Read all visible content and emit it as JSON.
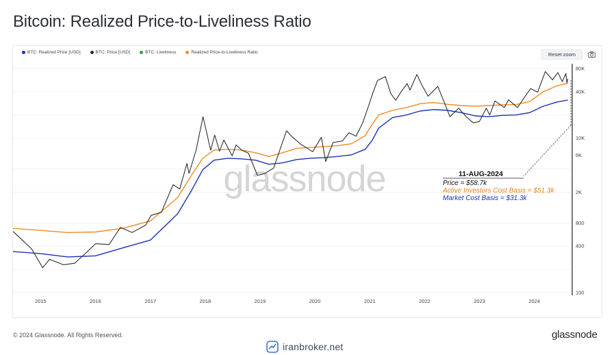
{
  "page": {
    "title": "Bitcoin: Realized Price-to-Liveliness Ratio",
    "copyright": "© 2024 Glassnode. All Rights Reserved.",
    "brand": "glassnode",
    "watermark": "glassnode",
    "broker": "iranbroker.net"
  },
  "toolbar": {
    "reset_zoom": "Reset zoom",
    "camera_icon": "camera-icon"
  },
  "legend": [
    {
      "label": "BTC: Realized Price [USD]",
      "color": "#1a32b5"
    },
    {
      "label": "BTC: Price [USD]",
      "color": "#2d2d2d"
    },
    {
      "label": "BTC: Liveliness",
      "color": "#3a9a3a"
    },
    {
      "label": "Realized Price-to-Liveliness Ratio",
      "color": "#f08a24"
    }
  ],
  "annotation": {
    "date": "11-AUG-2024",
    "price": "Price = $58.7k",
    "active": "Active Investors Cost Basis = $51.3k",
    "market": "Market Cost Basis = $31.3k"
  },
  "chart_data": {
    "type": "line",
    "title": "Bitcoin: Realized Price-to-Liveliness Ratio",
    "x_ticks": [
      "2015",
      "2016",
      "2017",
      "2018",
      "2019",
      "2020",
      "2021",
      "2022",
      "2023",
      "2024"
    ],
    "y_ticks": [
      "80K",
      "40K",
      "10K",
      "6K",
      "2K",
      "800",
      "400",
      "100"
    ],
    "y_scale": "log",
    "ylim": [
      100,
      85000
    ],
    "xlim": [
      "2014-07-01",
      "2024-08-31"
    ],
    "grid": true,
    "legend_position": "top-left",
    "series": [
      {
        "name": "BTC: Price [USD]",
        "color": "#2d2d2d",
        "points": [
          [
            "2014-07-01",
            620
          ],
          [
            "2014-09-01",
            480
          ],
          [
            "2014-11-01",
            370
          ],
          [
            "2015-01-15",
            210
          ],
          [
            "2015-03-01",
            270
          ],
          [
            "2015-06-01",
            230
          ],
          [
            "2015-08-15",
            240
          ],
          [
            "2015-11-01",
            330
          ],
          [
            "2016-01-01",
            430
          ],
          [
            "2016-04-01",
            420
          ],
          [
            "2016-06-15",
            700
          ],
          [
            "2016-09-01",
            600
          ],
          [
            "2016-12-01",
            750
          ],
          [
            "2017-01-05",
            1000
          ],
          [
            "2017-03-15",
            1100
          ],
          [
            "2017-06-01",
            2500
          ],
          [
            "2017-07-15",
            2200
          ],
          [
            "2017-09-01",
            4700
          ],
          [
            "2017-09-15",
            3500
          ],
          [
            "2017-11-01",
            7000
          ],
          [
            "2017-12-17",
            19000
          ],
          [
            "2018-02-06",
            7000
          ],
          [
            "2018-03-05",
            11000
          ],
          [
            "2018-04-06",
            6800
          ],
          [
            "2018-05-05",
            9500
          ],
          [
            "2018-06-29",
            5900
          ],
          [
            "2018-07-25",
            8200
          ],
          [
            "2018-09-01",
            7000
          ],
          [
            "2018-10-15",
            6400
          ],
          [
            "2018-11-20",
            4300
          ],
          [
            "2018-12-15",
            3300
          ],
          [
            "2019-02-01",
            3500
          ],
          [
            "2019-04-01",
            4100
          ],
          [
            "2019-06-26",
            12500
          ],
          [
            "2019-08-01",
            10500
          ],
          [
            "2019-10-01",
            8300
          ],
          [
            "2019-12-17",
            6700
          ],
          [
            "2020-02-13",
            10300
          ],
          [
            "2020-03-13",
            5000
          ],
          [
            "2020-05-01",
            8800
          ],
          [
            "2020-07-01",
            9200
          ],
          [
            "2020-08-15",
            11800
          ],
          [
            "2020-10-01",
            10600
          ],
          [
            "2020-11-15",
            16000
          ],
          [
            "2020-12-31",
            29000
          ],
          [
            "2021-01-15",
            36000
          ],
          [
            "2021-02-21",
            56000
          ],
          [
            "2021-04-14",
            63000
          ],
          [
            "2021-05-20",
            38000
          ],
          [
            "2021-06-22",
            31000
          ],
          [
            "2021-08-01",
            41000
          ],
          [
            "2021-09-06",
            51000
          ],
          [
            "2021-09-25",
            42000
          ],
          [
            "2021-11-10",
            67000
          ],
          [
            "2021-12-15",
            48000
          ],
          [
            "2022-01-24",
            35000
          ],
          [
            "2022-03-29",
            47000
          ],
          [
            "2022-05-12",
            29000
          ],
          [
            "2022-06-18",
            19000
          ],
          [
            "2022-08-15",
            24500
          ],
          [
            "2022-10-01",
            19300
          ],
          [
            "2022-11-21",
            15800
          ],
          [
            "2022-12-31",
            16500
          ],
          [
            "2023-02-15",
            24500
          ],
          [
            "2023-03-10",
            20000
          ],
          [
            "2023-04-14",
            30400
          ],
          [
            "2023-06-15",
            25000
          ],
          [
            "2023-07-13",
            31400
          ],
          [
            "2023-09-11",
            25000
          ],
          [
            "2023-10-23",
            33000
          ],
          [
            "2023-12-08",
            44000
          ],
          [
            "2024-01-23",
            39500
          ],
          [
            "2024-03-14",
            73000
          ],
          [
            "2024-05-01",
            57000
          ],
          [
            "2024-06-06",
            71000
          ],
          [
            "2024-07-05",
            54000
          ],
          [
            "2024-07-29",
            69000
          ],
          [
            "2024-08-05",
            52000
          ],
          [
            "2024-08-11",
            58700
          ]
        ]
      },
      {
        "name": "Realized Price-to-Liveliness Ratio",
        "color": "#f08a24",
        "points": [
          [
            "2014-07-01",
            680
          ],
          [
            "2015-01-01",
            640
          ],
          [
            "2015-07-01",
            600
          ],
          [
            "2016-01-01",
            610
          ],
          [
            "2016-07-01",
            680
          ],
          [
            "2017-01-01",
            850
          ],
          [
            "2017-07-01",
            1700
          ],
          [
            "2017-10-01",
            3300
          ],
          [
            "2017-12-15",
            5500
          ],
          [
            "2018-03-01",
            7000
          ],
          [
            "2018-06-01",
            7200
          ],
          [
            "2018-09-01",
            7000
          ],
          [
            "2018-12-01",
            6500
          ],
          [
            "2019-03-01",
            5800
          ],
          [
            "2019-06-01",
            6500
          ],
          [
            "2019-09-01",
            7400
          ],
          [
            "2019-12-01",
            7600
          ],
          [
            "2020-03-01",
            7800
          ],
          [
            "2020-06-01",
            8000
          ],
          [
            "2020-09-01",
            8500
          ],
          [
            "2020-12-01",
            10800
          ],
          [
            "2021-01-15",
            15000
          ],
          [
            "2021-03-01",
            20000
          ],
          [
            "2021-06-01",
            23000
          ],
          [
            "2021-09-01",
            25000
          ],
          [
            "2021-12-01",
            28000
          ],
          [
            "2022-03-01",
            29000
          ],
          [
            "2022-06-01",
            27500
          ],
          [
            "2022-09-01",
            26500
          ],
          [
            "2022-12-01",
            26000
          ],
          [
            "2023-03-01",
            26500
          ],
          [
            "2023-06-01",
            27000
          ],
          [
            "2023-09-01",
            27300
          ],
          [
            "2023-12-01",
            30000
          ],
          [
            "2024-03-01",
            40000
          ],
          [
            "2024-06-01",
            48000
          ],
          [
            "2024-08-11",
            51300
          ]
        ]
      },
      {
        "name": "BTC: Realized Price [USD]",
        "color": "#1a32b5",
        "points": [
          [
            "2014-07-01",
            340
          ],
          [
            "2015-01-01",
            320
          ],
          [
            "2015-07-01",
            290
          ],
          [
            "2016-01-01",
            300
          ],
          [
            "2016-07-01",
            380
          ],
          [
            "2017-01-01",
            480
          ],
          [
            "2017-07-01",
            1050
          ],
          [
            "2017-10-01",
            2100
          ],
          [
            "2017-12-15",
            3900
          ],
          [
            "2018-03-01",
            5200
          ],
          [
            "2018-06-01",
            5500
          ],
          [
            "2018-09-01",
            5400
          ],
          [
            "2018-12-01",
            5200
          ],
          [
            "2019-03-01",
            4600
          ],
          [
            "2019-06-01",
            4800
          ],
          [
            "2019-09-01",
            5300
          ],
          [
            "2019-12-01",
            5500
          ],
          [
            "2020-03-01",
            5600
          ],
          [
            "2020-06-01",
            5800
          ],
          [
            "2020-09-01",
            6100
          ],
          [
            "2020-12-01",
            7200
          ],
          [
            "2021-01-15",
            9300
          ],
          [
            "2021-03-01",
            13500
          ],
          [
            "2021-06-01",
            18500
          ],
          [
            "2021-09-01",
            20000
          ],
          [
            "2021-12-01",
            22500
          ],
          [
            "2022-03-01",
            23500
          ],
          [
            "2022-06-01",
            23000
          ],
          [
            "2022-09-01",
            21500
          ],
          [
            "2022-12-01",
            19500
          ],
          [
            "2023-03-01",
            19000
          ],
          [
            "2023-06-01",
            19800
          ],
          [
            "2023-09-01",
            20000
          ],
          [
            "2023-12-01",
            21500
          ],
          [
            "2024-03-01",
            26000
          ],
          [
            "2024-06-01",
            29500
          ],
          [
            "2024-08-11",
            31300
          ]
        ]
      }
    ]
  }
}
